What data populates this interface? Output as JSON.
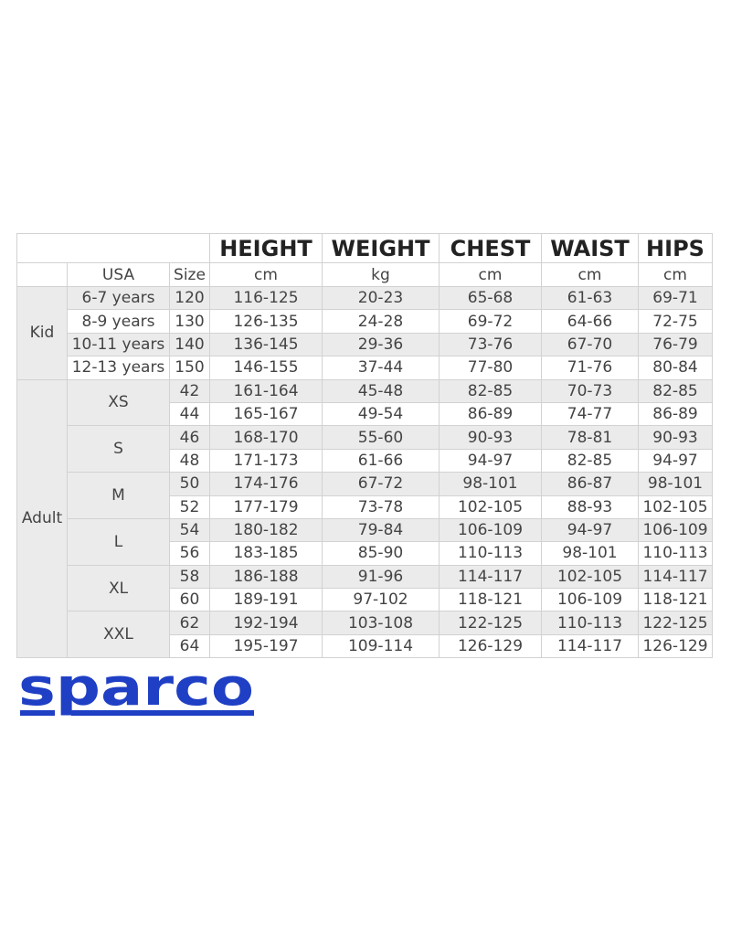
{
  "table": {
    "headers": [
      "HEIGHT",
      "WEIGHT",
      "CHEST",
      "WAIST",
      "HIPS"
    ],
    "units_row": {
      "usa": "USA",
      "size": "Size",
      "units": [
        "cm",
        "kg",
        "cm",
        "cm",
        "cm"
      ]
    },
    "kid": {
      "label": "Kid",
      "rows": [
        {
          "usa": "6-7 years",
          "size": "120",
          "values": [
            "116-125",
            "20-23",
            "65-68",
            "61-63",
            "69-71"
          ]
        },
        {
          "usa": "8-9 years",
          "size": "130",
          "values": [
            "126-135",
            "24-28",
            "69-72",
            "64-66",
            "72-75"
          ]
        },
        {
          "usa": "10-11 years",
          "size": "140",
          "values": [
            "136-145",
            "29-36",
            "73-76",
            "67-70",
            "76-79"
          ]
        },
        {
          "usa": "12-13 years",
          "size": "150",
          "values": [
            "146-155",
            "37-44",
            "77-80",
            "71-76",
            "80-84"
          ]
        }
      ]
    },
    "adult": {
      "label": "Adult",
      "groups": [
        {
          "usa": "XS",
          "rows": [
            {
              "size": "42",
              "values": [
                "161-164",
                "45-48",
                "82-85",
                "70-73",
                "82-85"
              ]
            },
            {
              "size": "44",
              "values": [
                "165-167",
                "49-54",
                "86-89",
                "74-77",
                "86-89"
              ]
            }
          ]
        },
        {
          "usa": "S",
          "rows": [
            {
              "size": "46",
              "values": [
                "168-170",
                "55-60",
                "90-93",
                "78-81",
                "90-93"
              ]
            },
            {
              "size": "48",
              "values": [
                "171-173",
                "61-66",
                "94-97",
                "82-85",
                "94-97"
              ]
            }
          ]
        },
        {
          "usa": "M",
          "rows": [
            {
              "size": "50",
              "values": [
                "174-176",
                "67-72",
                "98-101",
                "86-87",
                "98-101"
              ]
            },
            {
              "size": "52",
              "values": [
                "177-179",
                "73-78",
                "102-105",
                "88-93",
                "102-105"
              ]
            }
          ]
        },
        {
          "usa": "L",
          "rows": [
            {
              "size": "54",
              "values": [
                "180-182",
                "79-84",
                "106-109",
                "94-97",
                "106-109"
              ]
            },
            {
              "size": "56",
              "values": [
                "183-185",
                "85-90",
                "110-113",
                "98-101",
                "110-113"
              ]
            }
          ]
        },
        {
          "usa": "XL",
          "rows": [
            {
              "size": "58",
              "values": [
                "186-188",
                "91-96",
                "114-117",
                "102-105",
                "114-117"
              ]
            },
            {
              "size": "60",
              "values": [
                "189-191",
                "97-102",
                "118-121",
                "106-109",
                "118-121"
              ]
            }
          ]
        },
        {
          "usa": "XXL",
          "rows": [
            {
              "size": "62",
              "values": [
                "192-194",
                "103-108",
                "122-125",
                "110-113",
                "122-125"
              ]
            },
            {
              "size": "64",
              "values": [
                "195-197",
                "109-114",
                "126-129",
                "114-117",
                "126-129"
              ]
            }
          ]
        }
      ]
    }
  },
  "logo": {
    "text": "sparco",
    "color": "#1f3fc4"
  }
}
